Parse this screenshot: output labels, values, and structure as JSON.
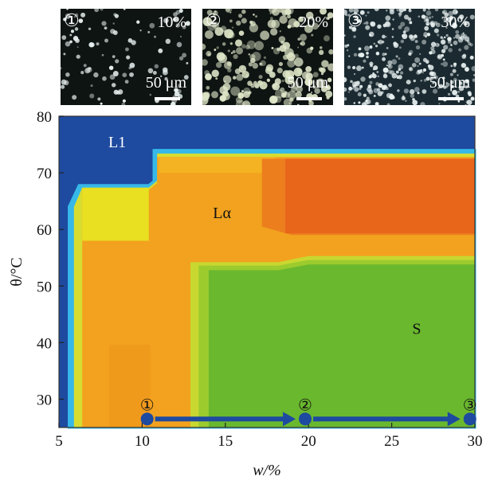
{
  "micrographs": [
    {
      "label": "①",
      "percent": "10%",
      "scale": "50 μm",
      "density": 0.25
    },
    {
      "label": "②",
      "percent": "20%",
      "scale": "50 μm",
      "density": 0.6
    },
    {
      "label": "③",
      "percent": "30%",
      "scale": "50 μm",
      "density": 1.0
    }
  ],
  "chart_data": {
    "type": "heatmap",
    "title": "",
    "xlabel": "w/%",
    "ylabel": "θ/°C",
    "xlim": [
      5,
      30
    ],
    "ylim": [
      25,
      80
    ],
    "xticks": [
      5,
      10,
      15,
      20,
      25,
      30
    ],
    "yticks": [
      30,
      40,
      50,
      60,
      70,
      80
    ],
    "regions": [
      {
        "name": "L1",
        "color": "#1e4aa0",
        "label_at": [
          8.5,
          74.5
        ]
      },
      {
        "name": "Lα",
        "color": "#f2a21e",
        "label_at": [
          14.8,
          62
        ]
      },
      {
        "name": "S",
        "color": "#6ab82e",
        "label_at": [
          26.5,
          41.5
        ]
      }
    ],
    "colors": {
      "yellow": "#e8e020",
      "red_orange": "#e8661a",
      "cyan_edge": "#36b8e8",
      "marker": "#1e4aa0"
    },
    "path_points": [
      {
        "label": "①",
        "w": 10.3,
        "t": 26.5
      },
      {
        "label": "②",
        "w": 19.8,
        "t": 26.5
      },
      {
        "label": "③",
        "w": 29.7,
        "t": 26.5
      }
    ]
  }
}
